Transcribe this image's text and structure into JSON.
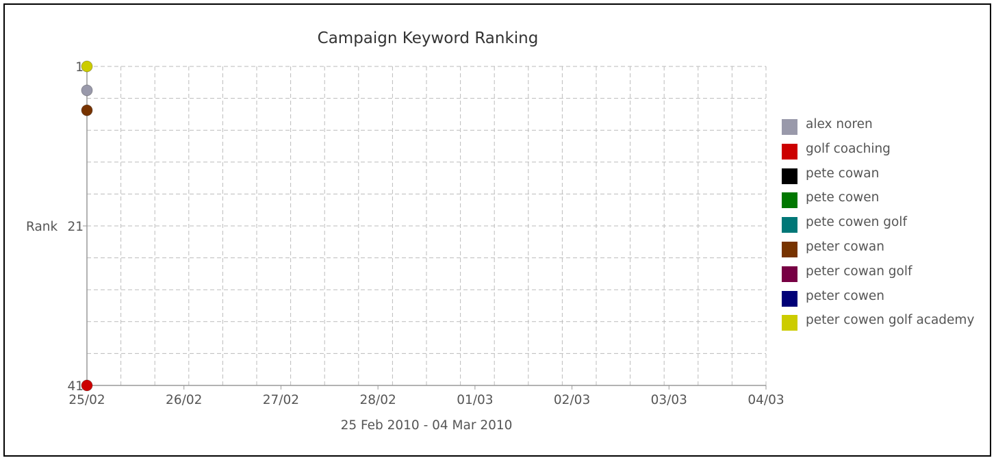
{
  "chart_data": {
    "type": "line",
    "title": "Campaign Keyword Ranking",
    "xlabel": "25 Feb 2010 - 04 Mar 2010",
    "ylabel": "Rank",
    "x_tick_labels": [
      "25/02",
      "26/02",
      "27/02",
      "28/02",
      "01/03",
      "02/03",
      "03/03",
      "04/03"
    ],
    "y_tick_labels": [
      "1",
      "21",
      "41"
    ],
    "ylim": [
      1,
      41
    ],
    "y_inverted": true,
    "grid": true,
    "legend_position": "right",
    "series": [
      {
        "name": "alex noren",
        "color": "#9999aa",
        "points": [
          {
            "x": "25/02",
            "y": 4
          }
        ]
      },
      {
        "name": "golf coaching",
        "color": "#cc0000",
        "points": [
          {
            "x": "25/02",
            "y": 41
          }
        ]
      },
      {
        "name": "pete cowan",
        "color": "#000000",
        "points": []
      },
      {
        "name": "pete cowen",
        "color": "#007700",
        "points": []
      },
      {
        "name": "pete cowen golf",
        "color": "#007777",
        "points": []
      },
      {
        "name": "peter cowan",
        "color": "#773300",
        "points": [
          {
            "x": "25/02",
            "y": 6.5
          }
        ]
      },
      {
        "name": "peter cowan golf",
        "color": "#770044",
        "points": []
      },
      {
        "name": "peter cowen",
        "color": "#000077",
        "points": []
      },
      {
        "name": "peter cowen golf academy",
        "color": "#cccc00",
        "points": [
          {
            "x": "25/02",
            "y": 1
          }
        ]
      }
    ]
  }
}
